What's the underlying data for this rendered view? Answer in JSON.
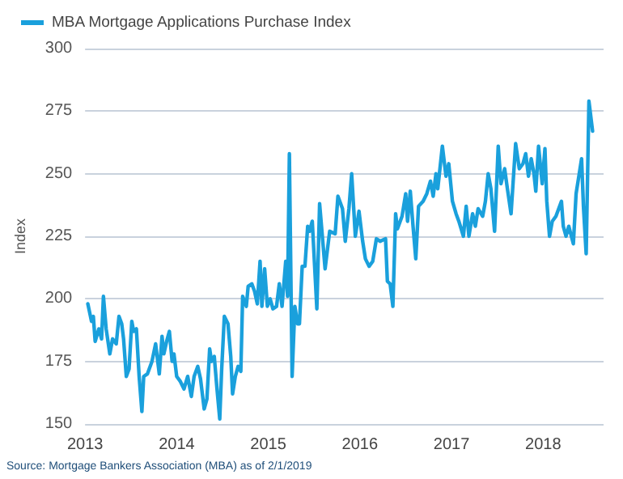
{
  "chart_data": {
    "type": "line",
    "ylabel": "Index",
    "annotations": [
      "Source: Mortgage Bankers Association (MBA) as of 2/1/2019"
    ],
    "xlim": [
      2013.5,
      2019.16
    ],
    "xticks": [
      {
        "value": 2013.5,
        "label": "2013"
      },
      {
        "value": 2014.5,
        "label": "2014"
      },
      {
        "value": 2015.5,
        "label": "2015"
      },
      {
        "value": 2016.5,
        "label": "2016"
      },
      {
        "value": 2017.5,
        "label": "2017"
      },
      {
        "value": 2018.5,
        "label": "2018"
      }
    ],
    "ylim": [
      150,
      300
    ],
    "yticks": [
      150,
      175,
      200,
      225,
      250,
      275,
      300
    ],
    "grid": "y",
    "legend": "top left",
    "marker": "none",
    "line_style": "solid",
    "series": [
      {
        "name": "MBA Mortgage Applications Purchase Index",
        "color": "#1aa0dc",
        "x": [
          2013.53,
          2013.57,
          2013.59,
          2013.61,
          2013.65,
          2013.68,
          2013.7,
          2013.73,
          2013.77,
          2013.8,
          2013.84,
          2013.87,
          2013.9,
          2013.92,
          2013.95,
          2013.98,
          2014.01,
          2014.03,
          2014.06,
          2014.09,
          2014.12,
          2014.14,
          2014.18,
          2014.23,
          2014.27,
          2014.31,
          2014.34,
          2014.36,
          2014.39,
          2014.42,
          2014.45,
          2014.47,
          2014.5,
          2014.54,
          2014.58,
          2014.62,
          2014.66,
          2014.69,
          2014.73,
          2014.76,
          2014.8,
          2014.83,
          2014.86,
          2014.88,
          2014.91,
          2014.94,
          2014.97,
          2014.99,
          2015.02,
          2015.06,
          2015.09,
          2015.11,
          2015.14,
          2015.17,
          2015.2,
          2015.22,
          2015.26,
          2015.28,
          2015.32,
          2015.35,
          2015.38,
          2015.41,
          2015.43,
          2015.46,
          2015.49,
          2015.52,
          2015.55,
          2015.59,
          2015.62,
          2015.65,
          2015.69,
          2015.71,
          2015.73,
          2015.76,
          2015.79,
          2015.82,
          2015.84,
          2015.87,
          2015.9,
          2015.93,
          2015.95,
          2015.98,
          2016.03,
          2016.06,
          2016.12,
          2016.17,
          2016.23,
          2016.26,
          2016.31,
          2016.34,
          2016.38,
          2016.41,
          2016.45,
          2016.49,
          2016.53,
          2016.56,
          2016.6,
          2016.64,
          2016.68,
          2016.72,
          2016.78,
          2016.8,
          2016.83,
          2016.86,
          2016.89,
          2016.91,
          2016.96,
          2017.0,
          2017.02,
          2017.05,
          2017.08,
          2017.11,
          2017.14,
          2017.19,
          2017.23,
          2017.27,
          2017.3,
          2017.33,
          2017.35,
          2017.4,
          2017.44,
          2017.47,
          2017.51,
          2017.55,
          2017.58,
          2017.63,
          2017.66,
          2017.69,
          2017.73,
          2017.76,
          2017.79,
          2017.84,
          2017.87,
          2017.9,
          2017.93,
          2017.97,
          2018.01,
          2018.04,
          2018.08,
          2018.11,
          2018.15,
          2018.2,
          2018.24,
          2018.28,
          2018.31,
          2018.34,
          2018.37,
          2018.4,
          2018.42,
          2018.45,
          2018.49,
          2018.52,
          2018.54,
          2018.57,
          2018.6,
          2018.64,
          2018.7,
          2018.72,
          2018.75,
          2018.78,
          2018.83,
          2018.86,
          2018.89,
          2018.92,
          2018.94,
          2018.97,
          2019.0,
          2019.04
        ],
        "values": [
          198,
          191,
          193,
          183,
          188,
          184,
          201,
          188,
          178,
          184,
          182,
          193,
          190,
          184,
          169,
          172,
          191,
          187,
          188,
          169,
          155,
          169,
          170,
          175,
          182,
          170,
          185,
          178,
          183,
          187,
          175,
          178,
          169,
          167,
          164,
          169,
          161,
          169,
          173,
          168,
          156,
          160,
          180,
          175,
          177,
          164,
          152,
          171,
          193,
          190,
          177,
          162,
          169,
          173,
          171,
          201,
          197,
          205,
          206,
          203,
          198,
          215,
          197,
          212,
          197,
          200,
          196,
          197,
          206,
          197,
          215,
          201,
          258,
          169,
          197,
          190,
          190,
          213,
          213,
          229,
          227,
          231,
          196,
          238,
          212,
          227,
          226,
          241,
          236,
          223,
          236,
          250,
          225,
          235,
          223,
          216,
          213,
          215,
          224,
          223,
          224,
          207,
          206,
          197,
          234,
          228,
          233,
          242,
          231,
          243,
          229,
          216,
          237,
          239,
          242,
          247,
          241,
          250,
          244,
          261,
          249,
          254,
          239,
          234,
          231,
          225,
          237,
          225,
          234,
          229,
          236,
          233,
          239,
          250,
          244,
          227,
          261,
          246,
          252,
          244,
          234,
          262,
          252,
          254,
          258,
          249,
          256,
          250,
          243,
          261,
          246,
          260,
          239,
          225,
          231,
          233,
          239,
          229,
          225,
          229,
          222,
          242,
          249,
          256,
          237,
          218,
          279,
          267
        ]
      }
    ]
  }
}
